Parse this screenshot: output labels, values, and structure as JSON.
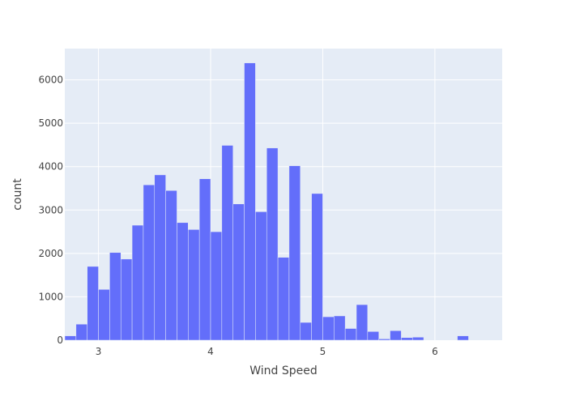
{
  "chart_data": {
    "type": "bar",
    "title": "",
    "xlabel": "Wind Speed",
    "ylabel": "count",
    "bin_width": 0.1,
    "bins_start": [
      2.7,
      2.8,
      2.9,
      3.0,
      3.1,
      3.2,
      3.3,
      3.4,
      3.5,
      3.6,
      3.7,
      3.8,
      3.9,
      4.0,
      4.1,
      4.2,
      4.3,
      4.4,
      4.5,
      4.6,
      4.7,
      4.8,
      4.9,
      5.0,
      5.1,
      5.2,
      5.3,
      5.4,
      5.5,
      5.6,
      5.7,
      5.8,
      5.9,
      6.0,
      6.1,
      6.2,
      6.3,
      6.4,
      6.5,
      6.6
    ],
    "values": [
      100,
      370,
      1700,
      1170,
      2020,
      1870,
      2650,
      3580,
      3810,
      3450,
      2710,
      2550,
      3720,
      2500,
      4490,
      3140,
      6390,
      2960,
      4430,
      1910,
      4020,
      410,
      3380,
      540,
      560,
      270,
      820,
      200,
      30,
      220,
      60,
      70,
      0,
      0,
      0,
      100,
      0,
      0,
      0,
      0
    ],
    "xlim": [
      2.7,
      6.6
    ],
    "ylim": [
      0,
      6720
    ],
    "x_ticks": [
      3,
      4,
      5,
      6
    ],
    "x_tick_labels": [
      "3",
      "4",
      "5",
      "6"
    ],
    "y_ticks": [
      0,
      1000,
      2000,
      3000,
      4000,
      5000,
      6000
    ],
    "y_tick_labels": [
      "0",
      "1000",
      "2000",
      "3000",
      "4000",
      "5000",
      "6000"
    ],
    "grid": true,
    "colors": {
      "bar": "#636efa",
      "plot_bg": "#e5ecf6",
      "grid": "#ffffff",
      "text": "#444444"
    }
  }
}
